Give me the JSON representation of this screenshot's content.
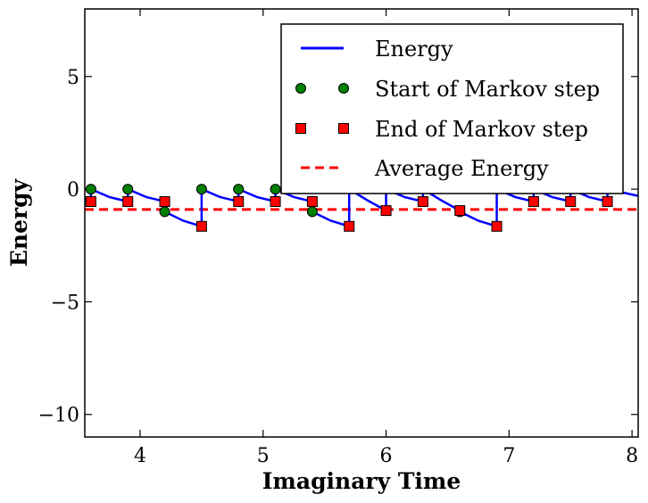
{
  "chart_data": {
    "type": "line",
    "title": "",
    "xlabel": "Imaginary Time",
    "ylabel": "Energy",
    "xlim": [
      3.55,
      8.05
    ],
    "ylim": [
      -11,
      8
    ],
    "xticks": [
      4,
      5,
      6,
      7,
      8
    ],
    "yticks": [
      -10,
      -5,
      0,
      5
    ],
    "tick_labels": {
      "x": [
        "4",
        "5",
        "6",
        "7",
        "8"
      ],
      "y": [
        "−10",
        "−5",
        "0",
        "5"
      ]
    },
    "grid": false,
    "legend_position": "top-right",
    "colors": {
      "energy": "#0000ff",
      "start": "#008000",
      "end": "#ff0000",
      "average": "#ff0000"
    },
    "series": [
      {
        "name": "Energy",
        "kind": "line",
        "points": [
          [
            3.55,
            -0.45
          ],
          [
            3.6,
            -0.55
          ],
          [
            3.6,
            0.0
          ],
          [
            3.75,
            -0.35
          ],
          [
            3.9,
            -0.55
          ],
          [
            3.9,
            0.0
          ],
          [
            4.05,
            -0.35
          ],
          [
            4.2,
            -0.55
          ],
          [
            4.2,
            -1.0
          ],
          [
            4.35,
            -1.4
          ],
          [
            4.5,
            -1.65
          ],
          [
            4.5,
            0.0
          ],
          [
            4.65,
            -0.35
          ],
          [
            4.8,
            -0.55
          ],
          [
            4.8,
            0.0
          ],
          [
            4.95,
            -0.35
          ],
          [
            5.1,
            -0.55
          ],
          [
            5.1,
            0.0
          ],
          [
            5.25,
            -0.35
          ],
          [
            5.4,
            -0.55
          ],
          [
            5.4,
            -1.0
          ],
          [
            5.55,
            -1.4
          ],
          [
            5.7,
            -1.65
          ],
          [
            5.7,
            0.0
          ],
          [
            5.85,
            -0.5
          ],
          [
            6.0,
            -0.95
          ],
          [
            6.0,
            0.0
          ],
          [
            6.15,
            -0.35
          ],
          [
            6.3,
            -0.55
          ],
          [
            6.3,
            0.0
          ],
          [
            6.45,
            -0.5
          ],
          [
            6.6,
            -0.95
          ],
          [
            6.6,
            -1.0
          ],
          [
            6.75,
            -1.4
          ],
          [
            6.9,
            -1.65
          ],
          [
            6.9,
            0.0
          ],
          [
            7.05,
            -0.35
          ],
          [
            7.2,
            -0.55
          ],
          [
            7.2,
            0.0
          ],
          [
            7.35,
            -0.35
          ],
          [
            7.5,
            -0.55
          ],
          [
            7.5,
            0.0
          ],
          [
            7.65,
            -0.35
          ],
          [
            7.8,
            -0.55
          ],
          [
            7.8,
            0.0
          ],
          [
            8.05,
            -0.3
          ]
        ]
      },
      {
        "name": "Start of Markov step",
        "kind": "markers",
        "marker": "circle",
        "points": [
          [
            3.6,
            0.0
          ],
          [
            3.9,
            0.0
          ],
          [
            4.2,
            -1.0
          ],
          [
            4.5,
            0.0
          ],
          [
            4.8,
            0.0
          ],
          [
            5.1,
            0.0
          ],
          [
            5.4,
            -1.0
          ],
          [
            6.6,
            -1.0
          ]
        ]
      },
      {
        "name": "End of Markov step",
        "kind": "markers",
        "marker": "square",
        "points": [
          [
            3.6,
            -0.55
          ],
          [
            3.9,
            -0.55
          ],
          [
            4.2,
            -0.55
          ],
          [
            4.5,
            -1.65
          ],
          [
            4.8,
            -0.55
          ],
          [
            5.1,
            -0.55
          ],
          [
            5.4,
            -0.55
          ],
          [
            5.7,
            -1.65
          ],
          [
            6.0,
            -0.95
          ],
          [
            6.3,
            -0.55
          ],
          [
            6.6,
            -0.95
          ],
          [
            6.9,
            -1.65
          ],
          [
            7.2,
            -0.55
          ],
          [
            7.5,
            -0.55
          ],
          [
            7.8,
            -0.55
          ]
        ]
      },
      {
        "name": "Average Energy",
        "kind": "hline",
        "y": -0.9
      }
    ],
    "legend": [
      {
        "label": "Energy",
        "style": "line"
      },
      {
        "label": "Start of Markov step",
        "style": "circle"
      },
      {
        "label": "End of Markov step",
        "style": "square"
      },
      {
        "label": "Average Energy",
        "style": "dashed"
      }
    ]
  }
}
